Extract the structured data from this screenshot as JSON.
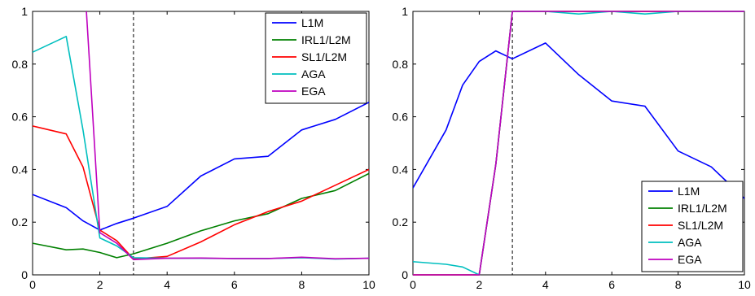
{
  "chart_data": [
    {
      "type": "line",
      "title": "",
      "xlabel": "",
      "ylabel": "",
      "xlim": [
        0,
        10
      ],
      "ylim": [
        0,
        1
      ],
      "xticks": [
        "0",
        "2",
        "4",
        "6",
        "8",
        "10"
      ],
      "yticks": [
        "0",
        "0.2",
        "0.4",
        "0.6",
        "0.8",
        "1"
      ],
      "vline_x": 3,
      "legend_position": "top-right",
      "series": [
        {
          "name": "L1M",
          "color": "#0000ff",
          "x": [
            0,
            1,
            1.5,
            2,
            2.5,
            3,
            4,
            5,
            6,
            7,
            8,
            9,
            10
          ],
          "y": [
            0.305,
            0.255,
            0.205,
            0.17,
            0.195,
            0.215,
            0.26,
            0.375,
            0.44,
            0.45,
            0.55,
            0.59,
            0.655
          ]
        },
        {
          "name": "IRL1/L2M",
          "color": "#008000",
          "x": [
            0,
            1,
            1.5,
            2,
            2.5,
            3,
            4,
            5,
            6,
            7,
            8,
            9,
            10
          ],
          "y": [
            0.12,
            0.095,
            0.098,
            0.085,
            0.065,
            0.08,
            0.12,
            0.167,
            0.205,
            0.232,
            0.29,
            0.32,
            0.385
          ]
        },
        {
          "name": "SL1/L2M",
          "color": "#ff0000",
          "x": [
            0,
            1,
            1.5,
            2,
            2.5,
            3,
            4,
            5,
            6,
            7,
            8,
            9,
            10
          ],
          "y": [
            0.565,
            0.535,
            0.41,
            0.17,
            0.13,
            0.06,
            0.07,
            0.125,
            0.19,
            0.24,
            0.28,
            0.34,
            0.4
          ]
        },
        {
          "name": "AGA",
          "color": "#00bfbf",
          "x": [
            0,
            1,
            1.5,
            2,
            2.5,
            3,
            4,
            5,
            6,
            7,
            8,
            9,
            10
          ],
          "y": [
            0.845,
            0.905,
            0.55,
            0.14,
            0.11,
            0.065,
            0.063,
            0.063,
            0.062,
            0.062,
            0.065,
            0.06,
            0.063
          ]
        },
        {
          "name": "EGA",
          "color": "#bf00bf",
          "x": [
            1.6,
            2,
            2.5,
            3,
            4,
            5,
            6,
            7,
            8,
            9,
            10
          ],
          "y": [
            1.0,
            0.16,
            0.12,
            0.058,
            0.063,
            0.064,
            0.062,
            0.062,
            0.067,
            0.061,
            0.063
          ]
        }
      ]
    },
    {
      "type": "line",
      "title": "",
      "xlabel": "",
      "ylabel": "",
      "xlim": [
        0,
        10
      ],
      "ylim": [
        0,
        1
      ],
      "xticks": [
        "0",
        "2",
        "4",
        "6",
        "8",
        "10"
      ],
      "yticks": [
        "0",
        "0.2",
        "0.4",
        "0.6",
        "0.8",
        "1"
      ],
      "vline_x": 3,
      "legend_position": "bottom-right",
      "series": [
        {
          "name": "L1M",
          "color": "#0000ff",
          "x": [
            0,
            1,
            1.5,
            2,
            2.5,
            3,
            4,
            5,
            6,
            7,
            8,
            9,
            10
          ],
          "y": [
            0.33,
            0.55,
            0.72,
            0.81,
            0.85,
            0.82,
            0.88,
            0.76,
            0.66,
            0.64,
            0.47,
            0.41,
            0.29
          ]
        },
        {
          "name": "IRL1/L2M",
          "color": "#008000",
          "x": [
            0,
            1,
            1.5,
            2,
            2.5,
            3,
            4,
            5,
            6,
            7,
            8,
            9,
            10
          ],
          "y": [
            0,
            0,
            0,
            0,
            0.42,
            1,
            1,
            1,
            1,
            1,
            1,
            1,
            1
          ]
        },
        {
          "name": "SL1/L2M",
          "color": "#ff0000",
          "x": [
            0,
            1,
            1.5,
            2,
            2.5,
            3,
            4,
            5,
            6,
            7,
            8,
            9,
            10
          ],
          "y": [
            0,
            0,
            0,
            0,
            0.42,
            1,
            1,
            1,
            1,
            1,
            1,
            1,
            1
          ]
        },
        {
          "name": "AGA",
          "color": "#00bfbf",
          "x": [
            0,
            1,
            1.5,
            2,
            2.5,
            3,
            4,
            5,
            6,
            7,
            8,
            9,
            10
          ],
          "y": [
            0.05,
            0.04,
            0.03,
            0.0,
            0.42,
            1,
            1,
            0.99,
            1,
            0.99,
            1,
            1,
            1
          ]
        },
        {
          "name": "EGA",
          "color": "#bf00bf",
          "x": [
            0,
            1,
            1.5,
            2,
            2.5,
            3,
            4,
            5,
            6,
            7,
            8,
            9,
            10
          ],
          "y": [
            0,
            0,
            0,
            0,
            0.42,
            1,
            1,
            1,
            1,
            1,
            1,
            1,
            1
          ]
        }
      ]
    }
  ]
}
